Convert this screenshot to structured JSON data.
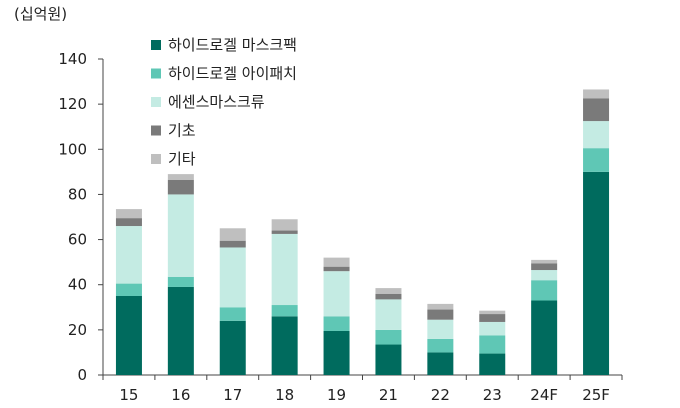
{
  "chart_data": {
    "type": "bar",
    "stacked": true,
    "unit_label": "(십억원)",
    "categories": [
      "15",
      "16",
      "17",
      "18",
      "19",
      "21",
      "22",
      "23",
      "24F",
      "25F"
    ],
    "ylim": [
      0,
      140
    ],
    "yticks": [
      0,
      20,
      40,
      60,
      80,
      100,
      120,
      140
    ],
    "grid": false,
    "legend_position": "top-left",
    "series": [
      {
        "name": "하이드로겔 마스크팩",
        "color": "#006b5e",
        "values": [
          35,
          39,
          24,
          26,
          19.5,
          13.5,
          10,
          9.5,
          33,
          90
        ]
      },
      {
        "name": "하이드로겔 아이패치",
        "color": "#5fc7b5",
        "values": [
          5.5,
          4.5,
          6,
          5,
          6.5,
          6.5,
          6,
          8,
          9,
          10.5
        ]
      },
      {
        "name": "에센스마스크류",
        "color": "#c4ebe3",
        "values": [
          25.5,
          36.5,
          26.5,
          31.5,
          20,
          13.5,
          8.5,
          6,
          4.5,
          12
        ]
      },
      {
        "name": "기초",
        "color": "#7a7a7a",
        "values": [
          3.5,
          6.5,
          3,
          1.5,
          2,
          2.5,
          4.5,
          3.5,
          3,
          10
        ]
      },
      {
        "name": "기타",
        "color": "#bfbfbf",
        "values": [
          4,
          2.5,
          5.5,
          5,
          4,
          2.5,
          2.5,
          1.5,
          1.5,
          4
        ]
      }
    ]
  }
}
